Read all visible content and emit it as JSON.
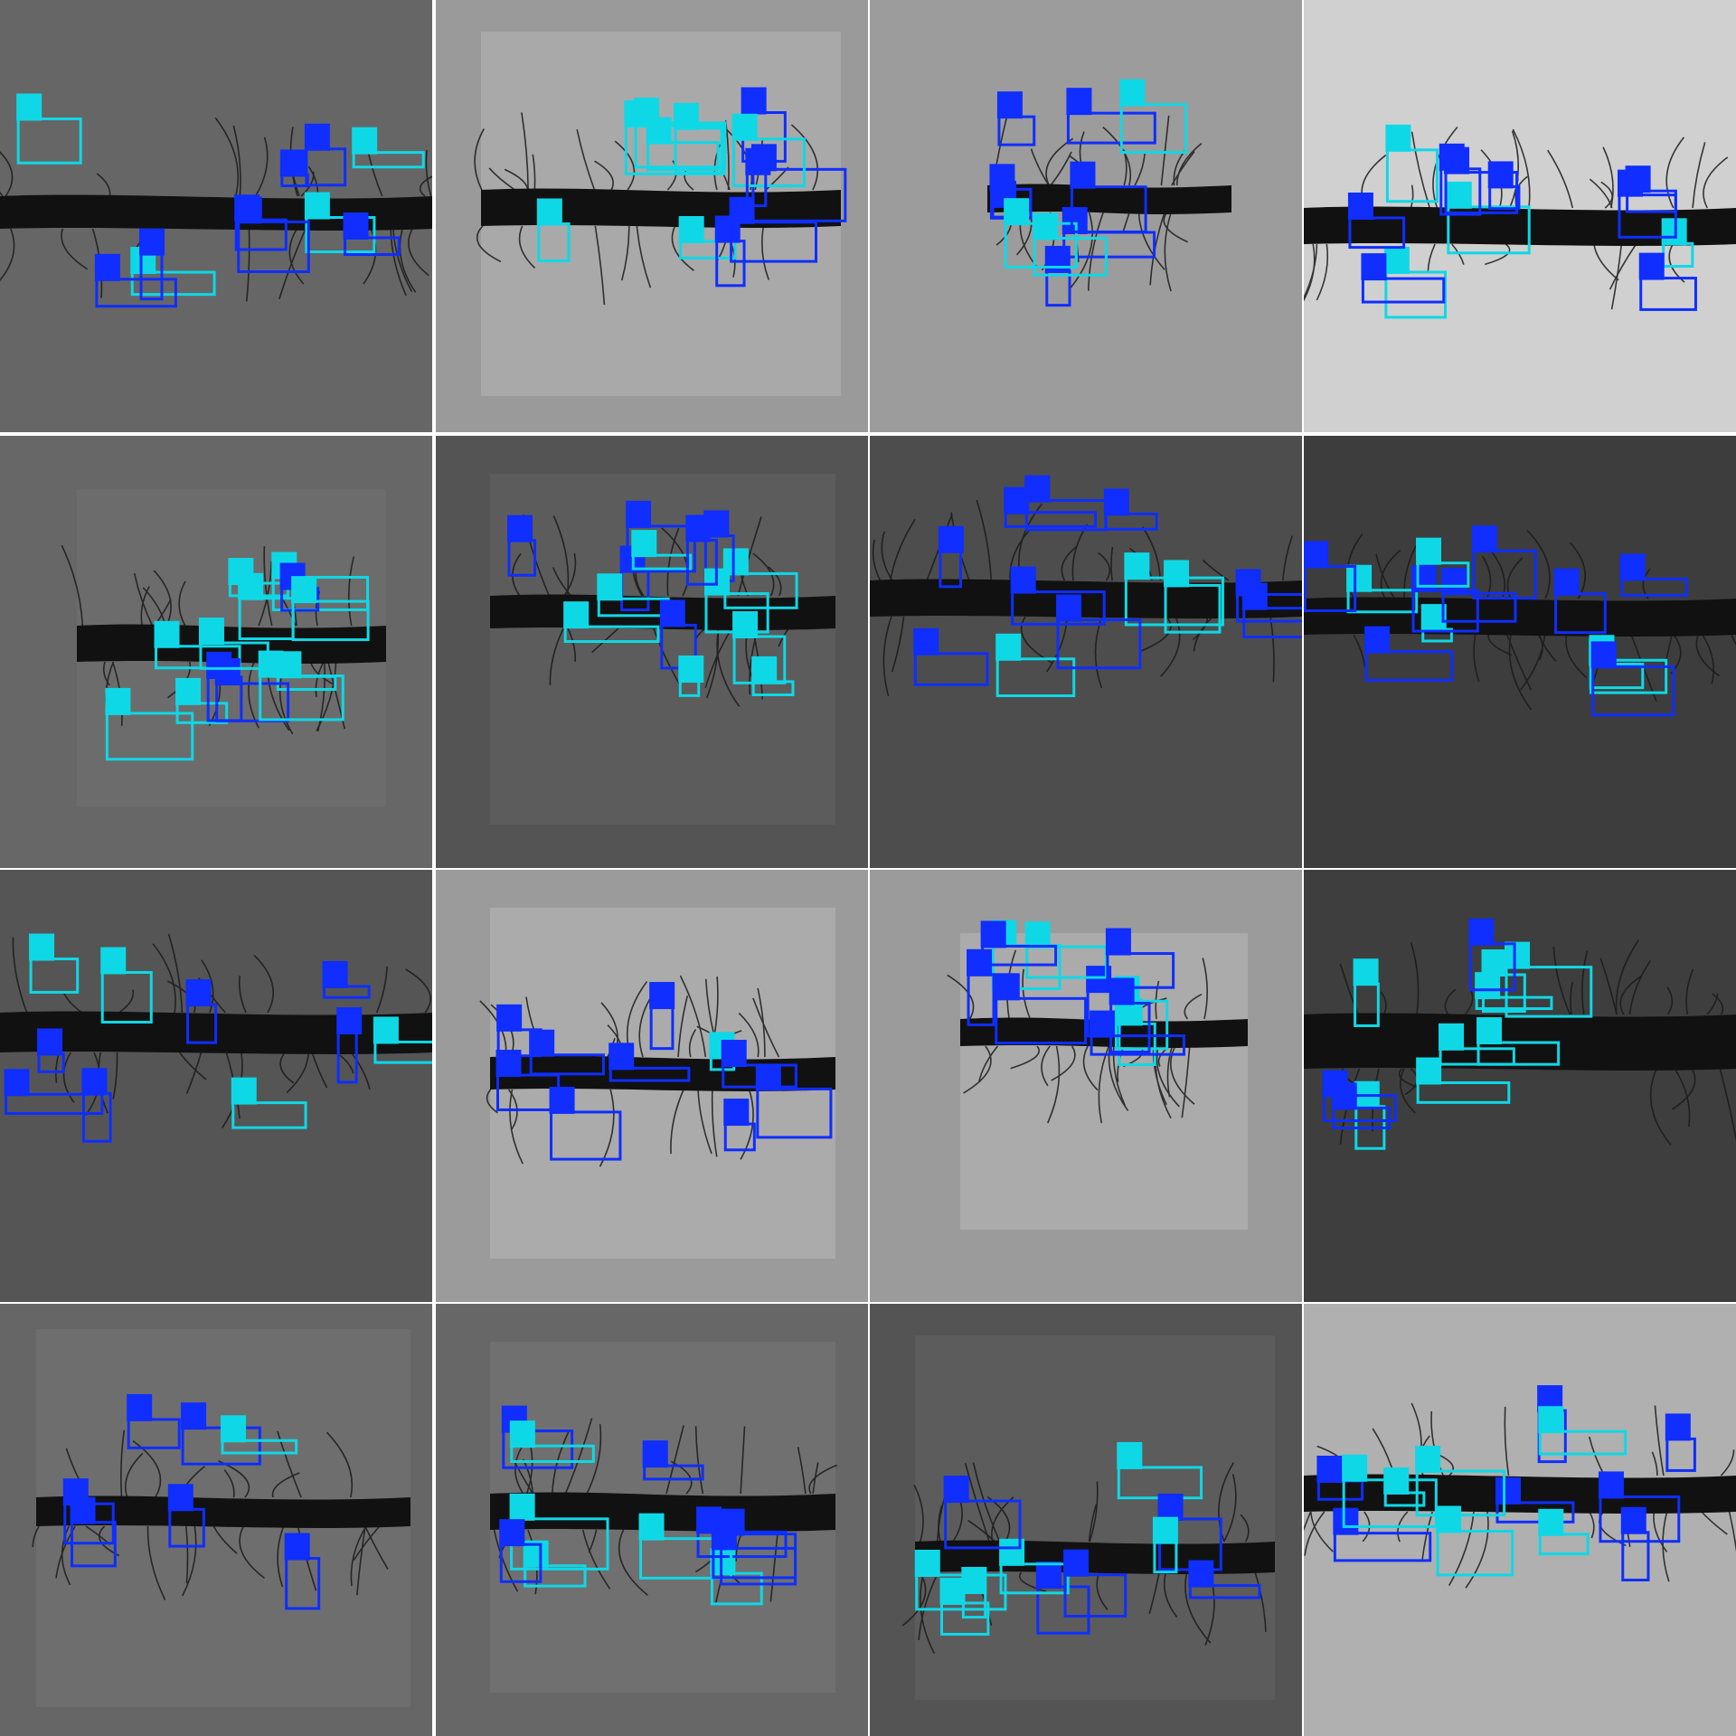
{
  "grid": {
    "rows": 4,
    "cols": 4
  },
  "colors": {
    "divider": "#ffffff",
    "annotation_a": "#0f2eff",
    "annotation_b": "#0fd8e6",
    "root_body": "#111111",
    "root_hair": "#1a1a1a"
  },
  "tiles": [
    {
      "name": "tile-r1c1",
      "bg": "#666666",
      "field": "#5c5c5c",
      "annotation_count": 22
    },
    {
      "name": "tile-r1c2",
      "bg": "#9a9a9a",
      "field": "#a9a9a9",
      "annotation_count": 24
    },
    {
      "name": "tile-r1c3",
      "bg": "#9c9c9c",
      "field": "#9c9c9c",
      "annotation_count": 20
    },
    {
      "name": "tile-r1c4",
      "bg": "#d0d0d0",
      "field": "#cfcfcf",
      "annotation_count": 24
    },
    {
      "name": "tile-r2c1",
      "bg": "#676767",
      "field": "#6c6c6c",
      "annotation_count": 26
    },
    {
      "name": "tile-r2c2",
      "bg": "#545454",
      "field": "#5c5c5c",
      "annotation_count": 28
    },
    {
      "name": "tile-r2c3",
      "bg": "#4d4d4d",
      "field": "#4f4f4f",
      "annotation_count": 24
    },
    {
      "name": "tile-r2c4",
      "bg": "#3d3d3d",
      "field": "#3f3f3f",
      "annotation_count": 26
    },
    {
      "name": "tile-r3c1",
      "bg": "#555555",
      "field": "#555555",
      "annotation_count": 20
    },
    {
      "name": "tile-r3c2",
      "bg": "#9b9b9b",
      "field": "#ababab",
      "annotation_count": 20
    },
    {
      "name": "tile-r3c3",
      "bg": "#9b9b9b",
      "field": "#ababab",
      "annotation_count": 22
    },
    {
      "name": "tile-r3c4",
      "bg": "#3e3e3e",
      "field": "#3e3e3e",
      "annotation_count": 22
    },
    {
      "name": "tile-r4c1",
      "bg": "#666666",
      "field": "#6e6e6e",
      "annotation_count": 14
    },
    {
      "name": "tile-r4c2",
      "bg": "#676767",
      "field": "#707070",
      "annotation_count": 22
    },
    {
      "name": "tile-r4c3",
      "bg": "#545454",
      "field": "#5c5c5c",
      "annotation_count": 22
    },
    {
      "name": "tile-r4c4",
      "bg": "#b0b0b0",
      "field": "#b3b3b3",
      "annotation_count": 26
    }
  ]
}
